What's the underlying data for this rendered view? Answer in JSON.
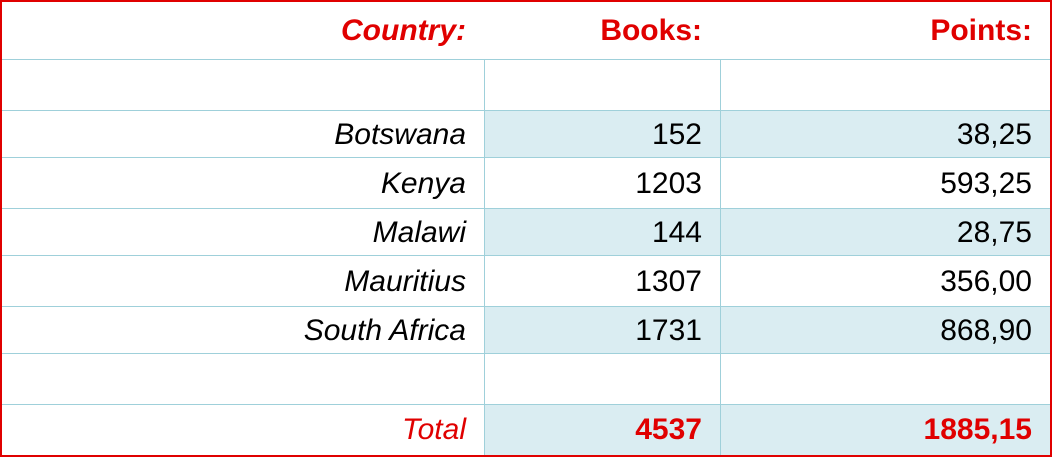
{
  "table": {
    "header": [
      "Country:",
      "Books:",
      "Points:"
    ],
    "rows": [
      [
        "Botswana",
        152,
        "38,25"
      ],
      [
        "Kenya",
        1203,
        "593,25"
      ],
      [
        "Malawi",
        144,
        "28,75"
      ],
      [
        "Mauritius",
        1307,
        "356,00"
      ],
      [
        "South Africa",
        1731,
        "868,90"
      ]
    ],
    "total": [
      "Total",
      4537,
      "1885,15"
    ]
  }
}
